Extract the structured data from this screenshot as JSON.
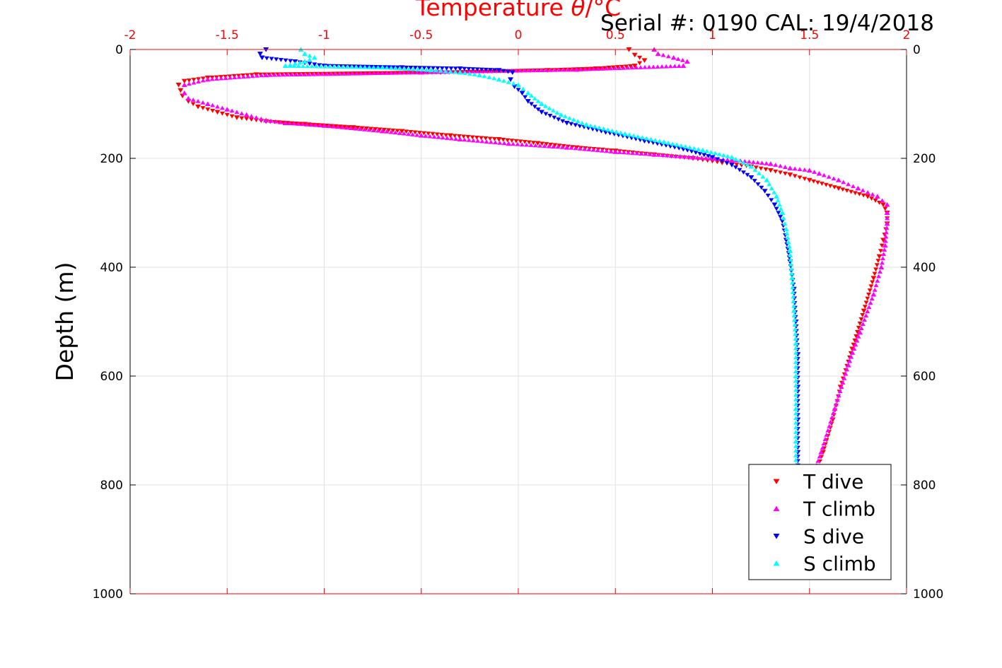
{
  "chart_data": {
    "type": "scatter",
    "title": "Serial #: 0190  CAL: 19/4/2018",
    "xlabel_prefix": "Temperature ",
    "xlabel_symbol": "θ",
    "xlabel_suffix": "/°C",
    "ylabel": "Depth (m)",
    "xlim": [
      -2,
      2
    ],
    "ylim": [
      0,
      1000
    ],
    "y_reversed": true,
    "x_axis_position": "top",
    "x_ticks": [
      -2,
      -1.5,
      -1,
      -0.5,
      0,
      0.5,
      1,
      1.5,
      2
    ],
    "x_tick_labels": [
      "-2",
      "-1.5",
      "-1",
      "-0.5",
      "0",
      "0.5",
      "1",
      "1.5",
      "2"
    ],
    "y_ticks": [
      0,
      200,
      400,
      600,
      800,
      1000
    ],
    "y_tick_labels": [
      "0",
      "200",
      "400",
      "600",
      "800",
      "1000"
    ],
    "grid": true,
    "legend_position": "bottom-right",
    "colors": {
      "axis_x": "#ff0000",
      "axis_y": "#000000",
      "grid": "#e0e0e0"
    },
    "series": [
      {
        "name": "T dive",
        "marker": "triangle-down",
        "color": "#ff0000",
        "points": [
          [
            0.57,
            0
          ],
          [
            0.6,
            10
          ],
          [
            0.65,
            20
          ],
          [
            0.6,
            30
          ],
          [
            0.4,
            35
          ],
          [
            0.15,
            38
          ],
          [
            -0.4,
            42
          ],
          [
            -1.35,
            46
          ],
          [
            -1.6,
            52
          ],
          [
            -1.72,
            58
          ],
          [
            -1.75,
            65
          ],
          [
            -1.74,
            75
          ],
          [
            -1.73,
            85
          ],
          [
            -1.7,
            95
          ],
          [
            -1.65,
            105
          ],
          [
            -1.55,
            115
          ],
          [
            -1.45,
            125
          ],
          [
            -1.3,
            132
          ],
          [
            -1.1,
            137
          ],
          [
            -0.85,
            143
          ],
          [
            -0.6,
            150
          ],
          [
            -0.35,
            158
          ],
          [
            -0.1,
            165
          ],
          [
            0.1,
            172
          ],
          [
            0.3,
            180
          ],
          [
            0.5,
            186
          ],
          [
            0.7,
            193
          ],
          [
            0.9,
            200
          ],
          [
            1.05,
            208
          ],
          [
            1.2,
            215
          ],
          [
            1.3,
            222
          ],
          [
            1.4,
            230
          ],
          [
            1.5,
            240
          ],
          [
            1.65,
            255
          ],
          [
            1.8,
            270
          ],
          [
            1.88,
            285
          ],
          [
            1.9,
            300
          ],
          [
            1.9,
            320
          ],
          [
            1.88,
            350
          ],
          [
            1.86,
            380
          ],
          [
            1.83,
            420
          ],
          [
            1.78,
            480
          ],
          [
            1.72,
            550
          ],
          [
            1.66,
            620
          ],
          [
            1.62,
            680
          ],
          [
            1.57,
            740
          ],
          [
            1.52,
            790
          ]
        ]
      },
      {
        "name": "T climb",
        "marker": "triangle-up",
        "color": "#ff00ff",
        "points": [
          [
            0.7,
            0
          ],
          [
            0.72,
            8
          ],
          [
            0.8,
            15
          ],
          [
            0.87,
            22
          ],
          [
            0.85,
            30
          ],
          [
            0.3,
            37
          ],
          [
            -0.5,
            42
          ],
          [
            -1.3,
            47
          ],
          [
            -1.6,
            55
          ],
          [
            -1.72,
            65
          ],
          [
            -1.72,
            80
          ],
          [
            -1.7,
            90
          ],
          [
            -1.6,
            100
          ],
          [
            -1.5,
            110
          ],
          [
            -1.4,
            120
          ],
          [
            -1.3,
            130
          ],
          [
            -1.2,
            135
          ],
          [
            -1.0,
            140
          ],
          [
            -0.7,
            150
          ],
          [
            -0.5,
            158
          ],
          [
            -0.3,
            165
          ],
          [
            -0.05,
            173
          ],
          [
            0.25,
            180
          ],
          [
            0.5,
            188
          ],
          [
            0.7,
            193
          ],
          [
            0.9,
            198
          ],
          [
            1.1,
            203
          ],
          [
            1.3,
            210
          ],
          [
            1.4,
            218
          ],
          [
            1.5,
            222
          ],
          [
            1.55,
            228
          ],
          [
            1.65,
            240
          ],
          [
            1.75,
            255
          ],
          [
            1.85,
            270
          ],
          [
            1.9,
            285
          ],
          [
            1.9,
            300
          ],
          [
            1.9,
            320
          ],
          [
            1.89,
            360
          ],
          [
            1.87,
            400
          ],
          [
            1.83,
            450
          ],
          [
            1.76,
            520
          ],
          [
            1.7,
            580
          ],
          [
            1.63,
            660
          ],
          [
            1.56,
            740
          ],
          [
            1.52,
            780
          ]
        ]
      },
      {
        "name": "S dive",
        "marker": "triangle-down",
        "color": "#0000ff",
        "points": [
          [
            -1.3,
            0
          ],
          [
            -1.33,
            8
          ],
          [
            -1.32,
            15
          ],
          [
            -1.15,
            22
          ],
          [
            -1.0,
            30
          ],
          [
            -0.6,
            33
          ],
          [
            -0.3,
            35
          ],
          [
            -0.1,
            38
          ],
          [
            -0.03,
            42
          ],
          [
            -0.04,
            55
          ],
          [
            -0.02,
            68
          ],
          [
            0.02,
            80
          ],
          [
            0.05,
            95
          ],
          [
            0.12,
            115
          ],
          [
            0.25,
            135
          ],
          [
            0.45,
            152
          ],
          [
            0.65,
            168
          ],
          [
            0.85,
            183
          ],
          [
            1.0,
            198
          ],
          [
            1.1,
            212
          ],
          [
            1.2,
            235
          ],
          [
            1.27,
            260
          ],
          [
            1.32,
            285
          ],
          [
            1.36,
            315
          ],
          [
            1.38,
            350
          ],
          [
            1.4,
            390
          ],
          [
            1.42,
            440
          ],
          [
            1.43,
            500
          ],
          [
            1.44,
            560
          ],
          [
            1.44,
            620
          ],
          [
            1.44,
            680
          ],
          [
            1.44,
            740
          ],
          [
            1.44,
            780
          ]
        ]
      },
      {
        "name": "S climb",
        "marker": "triangle-up",
        "color": "#00ffff",
        "points": [
          [
            -1.12,
            0
          ],
          [
            -1.1,
            8
          ],
          [
            -1.05,
            15
          ],
          [
            -1.1,
            22
          ],
          [
            -1.2,
            30
          ],
          [
            -0.7,
            33
          ],
          [
            -0.45,
            38
          ],
          [
            -0.3,
            42
          ],
          [
            -0.2,
            47
          ],
          [
            -0.1,
            55
          ],
          [
            0.0,
            65
          ],
          [
            0.05,
            80
          ],
          [
            0.12,
            100
          ],
          [
            0.22,
            120
          ],
          [
            0.35,
            138
          ],
          [
            0.55,
            155
          ],
          [
            0.75,
            170
          ],
          [
            0.95,
            185
          ],
          [
            1.1,
            198
          ],
          [
            1.2,
            215
          ],
          [
            1.28,
            240
          ],
          [
            1.33,
            270
          ],
          [
            1.36,
            300
          ],
          [
            1.38,
            330
          ],
          [
            1.4,
            370
          ],
          [
            1.41,
            420
          ],
          [
            1.42,
            480
          ],
          [
            1.43,
            540
          ],
          [
            1.43,
            600
          ],
          [
            1.43,
            660
          ],
          [
            1.43,
            720
          ],
          [
            1.43,
            780
          ]
        ]
      }
    ]
  }
}
